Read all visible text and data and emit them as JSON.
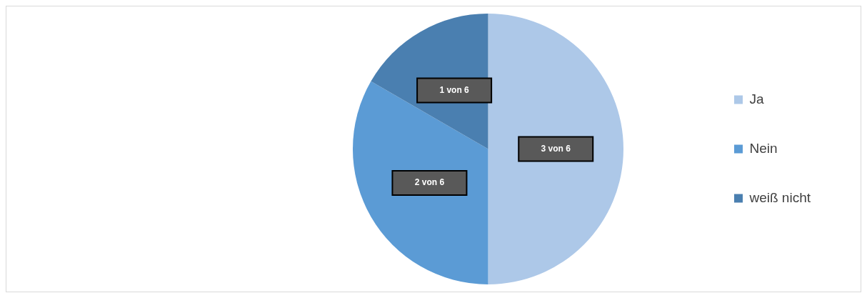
{
  "chart_data": {
    "type": "pie",
    "categories": [
      "Ja",
      "Nein",
      "weiß nicht"
    ],
    "values": [
      3,
      2,
      1
    ],
    "value_labels": [
      "3 von 6",
      "2 von 6",
      "1 von 6"
    ],
    "colors": [
      "#adc8e8",
      "#5b9bd5",
      "#4a7fb0"
    ],
    "legend": "right"
  }
}
